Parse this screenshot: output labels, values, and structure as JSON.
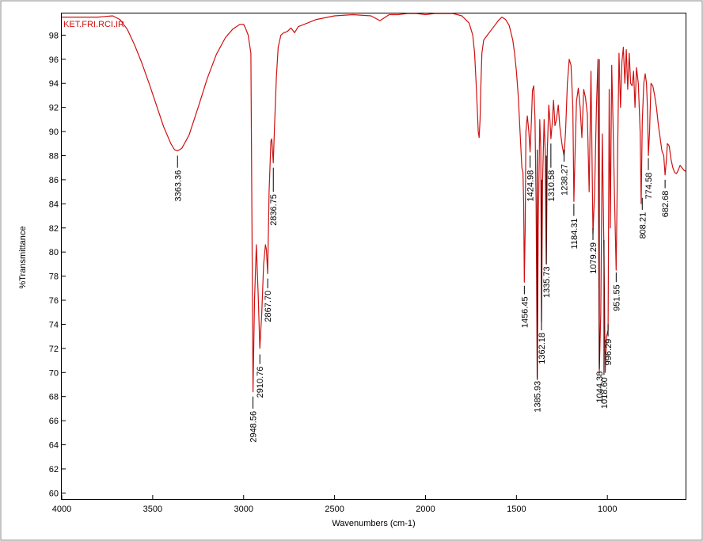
{
  "chart_data": {
    "type": "line",
    "title": "KET.FRI.RCI.IR",
    "xlabel": "Wavenumbers (cm-1)",
    "ylabel": "%Transmittance",
    "xlim": [
      4000,
      570
    ],
    "ylim": [
      59.5,
      99.8
    ],
    "x_ticks": [
      4000,
      3500,
      3000,
      2500,
      2000,
      1500,
      1000
    ],
    "y_ticks": [
      60,
      62,
      64,
      66,
      68,
      70,
      72,
      74,
      76,
      78,
      80,
      82,
      84,
      86,
      88,
      90,
      92,
      94,
      96,
      98
    ],
    "line_color": "#d01010",
    "series": [
      {
        "name": "Spectrum",
        "x": [
          4000,
          3900,
          3800,
          3720,
          3680,
          3640,
          3600,
          3560,
          3520,
          3480,
          3440,
          3400,
          3380,
          3363,
          3340,
          3300,
          3250,
          3200,
          3150,
          3100,
          3060,
          3040,
          3020,
          3000,
          2990,
          2975,
          2960,
          2948.56,
          2940,
          2930,
          2920,
          2910.76,
          2900,
          2890,
          2880,
          2875,
          2867.7,
          2860,
          2850,
          2845,
          2836.75,
          2830,
          2820,
          2810,
          2795,
          2780,
          2760,
          2740,
          2720,
          2700,
          2600,
          2500,
          2400,
          2300,
          2250,
          2200,
          2150,
          2100,
          2050,
          2000,
          1950,
          1900,
          1850,
          1800,
          1780,
          1760,
          1740,
          1730,
          1720,
          1710,
          1705,
          1700,
          1695,
          1690,
          1680,
          1660,
          1640,
          1620,
          1600,
          1580,
          1560,
          1540,
          1520,
          1510,
          1500,
          1490,
          1480,
          1470,
          1464,
          1460,
          1456.45,
          1452,
          1448,
          1440,
          1432,
          1424.98,
          1418,
          1412,
          1405,
          1398,
          1392,
          1385.93,
          1380,
          1372,
          1366,
          1362.18,
          1356,
          1348,
          1342,
          1335.73,
          1330,
          1322,
          1316,
          1310.58,
          1304,
          1296,
          1288,
          1280,
          1270,
          1262,
          1255,
          1248,
          1238.27,
          1230,
          1220,
          1210,
          1200,
          1190,
          1184.31,
          1178,
          1170,
          1160,
          1150,
          1140,
          1130,
          1120,
          1110,
          1100,
          1090,
          1079.29,
          1070,
          1060,
          1052,
          1044.38,
          1036,
          1028,
          1018.6,
          1012,
          1005,
          996.29,
          990,
          984,
          976,
          968,
          960,
          951.55,
          944,
          936,
          928,
          920,
          912,
          904,
          896,
          888,
          880,
          872,
          864,
          856,
          848,
          840,
          830,
          820,
          814,
          808.21,
          800,
          792,
          785,
          780,
          774.58,
          768,
          760,
          750,
          740,
          730,
          720,
          710,
          700,
          690,
          682.68,
          676,
          670,
          660,
          650,
          640,
          630,
          620,
          610,
          600,
          590,
          580,
          570
        ],
        "values": [
          99.5,
          99.5,
          99.5,
          99.6,
          99.3,
          98.5,
          97.2,
          95.7,
          94.0,
          92.2,
          90.4,
          89.0,
          88.5,
          88.4,
          88.6,
          89.7,
          92.0,
          94.4,
          96.4,
          97.8,
          98.5,
          98.7,
          98.9,
          98.9,
          98.6,
          98.0,
          96.5,
          68.4,
          76.0,
          80.6,
          76.5,
          72.0,
          75.0,
          79.0,
          80.6,
          80.2,
          78.2,
          85.0,
          89.2,
          89.4,
          87.4,
          90.5,
          94.5,
          97.0,
          98.0,
          98.2,
          98.3,
          98.6,
          98.2,
          98.7,
          99.3,
          99.6,
          99.7,
          99.6,
          99.2,
          99.7,
          99.7,
          99.8,
          99.8,
          99.7,
          99.8,
          99.8,
          99.8,
          99.6,
          99.3,
          99.0,
          98.0,
          96.5,
          93.5,
          90.0,
          89.5,
          91.0,
          94.0,
          96.5,
          97.6,
          98.0,
          98.4,
          98.8,
          99.2,
          99.5,
          99.3,
          98.8,
          97.6,
          96.5,
          95.0,
          93.0,
          90.0,
          87.0,
          86.6,
          84.0,
          77.5,
          82.0,
          90.0,
          91.3,
          90.0,
          88.3,
          90.8,
          93.4,
          93.8,
          91.0,
          84.0,
          69.4,
          82.0,
          91.0,
          88.5,
          74.2,
          86.0,
          91.0,
          88.5,
          79.0,
          88.5,
          92.2,
          91.0,
          89.4,
          90.6,
          92.6,
          90.5,
          91.0,
          92.2,
          90.5,
          89.6,
          88.8,
          88.0,
          90.0,
          94.0,
          96.0,
          95.5,
          92.0,
          84.2,
          88.0,
          92.5,
          93.6,
          92.0,
          89.5,
          93.5,
          92.8,
          91.4,
          85.0,
          95.0,
          81.5,
          85.0,
          92.0,
          96.0,
          70.0,
          75.0,
          89.8,
          80.0,
          70.0,
          73.0,
          73.5,
          93.5,
          82.0,
          95.5,
          90.0,
          84.0,
          78.5,
          88.0,
          96.5,
          92.0,
          95.8,
          97.0,
          94.0,
          96.8,
          93.5,
          96.5,
          94.0,
          93.8,
          95.0,
          92.0,
          95.3,
          94.0,
          90.0,
          84.0,
          90.8,
          94.0,
          94.8,
          94.0,
          92.0,
          88.0,
          90.0,
          94.0,
          93.8,
          93.0,
          92.0,
          90.6,
          89.5,
          88.4,
          88.0,
          86.4,
          87.5,
          89.0,
          88.8,
          87.7,
          87.0,
          86.6,
          86.5,
          86.8,
          87.2,
          87.0,
          86.8,
          86.7
        ]
      }
    ],
    "peak_labels": [
      "3363.36",
      "2948.56",
      "2910.76",
      "2867.70",
      "2836.75",
      "1456.45",
      "1424.98",
      "1385.93",
      "1362.18",
      "1335.73",
      "1310.58",
      "1238.27",
      "1184.31",
      "1079.29",
      "1044.38",
      "1018.60",
      "996.29",
      "951.55",
      "808.21",
      "774.58",
      "682.68"
    ],
    "annotations": [
      {
        "label": "3363.36",
        "x": 3363.36,
        "y1": 88.0,
        "y2": 87.0
      },
      {
        "label": "2948.56",
        "x": 2948.56,
        "y1": 68.0,
        "y2": 67.0
      },
      {
        "label": "2910.76",
        "x": 2910.76,
        "y1": 71.5,
        "y2": 70.7
      },
      {
        "label": "2867.70",
        "x": 2867.7,
        "y1": 77.8,
        "y2": 77.0
      },
      {
        "label": "2836.75",
        "x": 2836.75,
        "y1": 87.0,
        "y2": 85.0
      },
      {
        "label": "1456.45",
        "x": 1456.45,
        "y1": 77.2,
        "y2": 76.5
      },
      {
        "label": "1424.98",
        "x": 1424.98,
        "y1": 88.0,
        "y2": 87.0
      },
      {
        "label": "1385.93",
        "x": 1385.93,
        "y1": 88.5,
        "y2": 69.5
      },
      {
        "label": "1362.18",
        "x": 1362.18,
        "y1": 86.0,
        "y2": 73.5
      },
      {
        "label": "1335.73",
        "x": 1335.73,
        "y1": 88.0,
        "y2": 79.0
      },
      {
        "label": "1310.58",
        "x": 1310.58,
        "y1": 89.0,
        "y2": 87.0
      },
      {
        "label": "1238.27",
        "x": 1238.27,
        "y1": 88.5,
        "y2": 87.5
      },
      {
        "label": "1184.31",
        "x": 1184.31,
        "y1": 84.0,
        "y2": 83.0
      },
      {
        "label": "1079.29",
        "x": 1079.29,
        "y1": 82.0,
        "y2": 81.0
      },
      {
        "label": "1044.38",
        "x": 1044.38,
        "y1": 96.0,
        "y2": 70.3
      },
      {
        "label": "1018.60",
        "x": 1018.6,
        "y1": 81.0,
        "y2": 69.8
      },
      {
        "label": "996.29",
        "x": 996.29,
        "y1": 74.0,
        "y2": 73.0
      },
      {
        "label": "951.55",
        "x": 951.55,
        "y1": 78.3,
        "y2": 77.5
      },
      {
        "label": "808.21",
        "x": 808.21,
        "y1": 84.5,
        "y2": 83.5
      },
      {
        "label": "774.58",
        "x": 774.58,
        "y1": 87.8,
        "y2": 86.8
      },
      {
        "label": "682.68",
        "x": 682.68,
        "y1": 86.0,
        "y2": 85.3
      }
    ]
  }
}
